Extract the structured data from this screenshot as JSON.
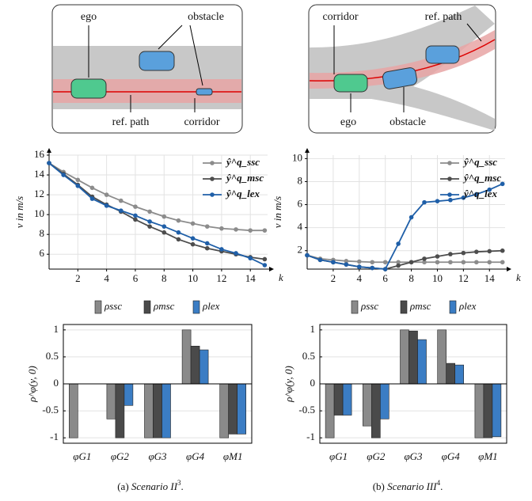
{
  "scenes": {
    "left": {
      "ego": "ego",
      "obstacle": "obstacle",
      "ref_path": "ref. path",
      "corridor": "corridor"
    },
    "right": {
      "corridor": "corridor",
      "ref_path": "ref. path",
      "ego": "ego",
      "obstacle": "obstacle"
    }
  },
  "captions": {
    "left": {
      "label": "(a)",
      "text": "Scenario II",
      "sup": "3",
      "end": "."
    },
    "right": {
      "label": "(b)",
      "text": "Scenario III",
      "sup": "4",
      "end": "."
    }
  },
  "chart_data": [
    {
      "type": "line",
      "xlabel": "k",
      "ylabel": "v in m/s",
      "x": [
        0,
        1,
        2,
        3,
        4,
        5,
        6,
        7,
        8,
        9,
        10,
        11,
        12,
        13,
        14,
        15
      ],
      "xlim": [
        0,
        15.2
      ],
      "xticks": [
        2,
        4,
        6,
        8,
        10,
        12,
        14
      ],
      "ylim": [
        4.5,
        16
      ],
      "yticks": [
        6,
        8,
        10,
        12,
        14,
        16
      ],
      "grid": true,
      "legend": "top-right",
      "series": [
        {
          "name": "ŷ^q_ssc",
          "color": "#8c8c8c",
          "values": [
            15.2,
            14.3,
            13.5,
            12.7,
            12.0,
            11.4,
            10.8,
            10.3,
            9.8,
            9.4,
            9.1,
            8.8,
            8.6,
            8.5,
            8.4,
            8.4
          ]
        },
        {
          "name": "ŷ^q_msc",
          "color": "#4d4d4d",
          "values": [
            15.2,
            14.1,
            13.0,
            11.8,
            11.0,
            10.3,
            9.5,
            8.8,
            8.2,
            7.5,
            7.0,
            6.6,
            6.3,
            6.0,
            5.7,
            5.5
          ]
        },
        {
          "name": "ŷ^q_lex",
          "color": "#1f5fa8",
          "values": [
            15.2,
            14.0,
            12.9,
            11.6,
            10.9,
            10.4,
            9.9,
            9.3,
            8.8,
            8.2,
            7.6,
            7.1,
            6.5,
            6.1,
            5.6,
            4.9
          ]
        }
      ]
    },
    {
      "type": "line",
      "xlabel": "k",
      "ylabel": "v in m/s",
      "x": [
        0,
        1,
        2,
        3,
        4,
        5,
        6,
        7,
        8,
        9,
        10,
        11,
        12,
        13,
        14,
        15
      ],
      "xlim": [
        0,
        15.2
      ],
      "xticks": [
        2,
        4,
        6,
        8,
        10,
        12,
        14
      ],
      "ylim": [
        0.4,
        10.3
      ],
      "yticks": [
        2,
        4,
        6,
        8,
        10
      ],
      "grid": true,
      "legend": "top-right",
      "series": [
        {
          "name": "ŷ^q_ssc",
          "color": "#8c8c8c",
          "values": [
            1.6,
            1.3,
            1.2,
            1.1,
            1.05,
            1.0,
            1.0,
            1.0,
            1.0,
            1.0,
            1.0,
            1.0,
            1.0,
            1.0,
            1.0,
            1.0
          ]
        },
        {
          "name": "ŷ^q_msc",
          "color": "#4d4d4d",
          "values": [
            1.6,
            1.2,
            1.0,
            0.8,
            0.6,
            0.5,
            0.4,
            0.7,
            1.0,
            1.3,
            1.5,
            1.7,
            1.8,
            1.9,
            1.95,
            2.0
          ]
        },
        {
          "name": "ŷ^q_lex",
          "color": "#1f5fa8",
          "values": [
            1.6,
            1.2,
            1.0,
            0.8,
            0.6,
            0.5,
            0.4,
            2.6,
            4.9,
            6.2,
            6.3,
            6.4,
            6.6,
            6.9,
            7.3,
            7.8
          ]
        }
      ]
    },
    {
      "type": "bar",
      "ylabel": "ρ^φ(y, 0)",
      "categories": [
        "φG1",
        "φG2",
        "φG3",
        "φG4",
        "φM1"
      ],
      "ylim": [
        -1.1,
        1.1
      ],
      "yticks": [
        -1,
        -0.5,
        0,
        0.5,
        1
      ],
      "grid": true,
      "legend": "top",
      "series": [
        {
          "name": "ρssc",
          "color": "#8a8a8a",
          "values": [
            -1,
            -0.65,
            -1,
            1,
            -1
          ]
        },
        {
          "name": "ρmsc",
          "color": "#4a4a4a",
          "values": [
            0,
            -1,
            -1,
            0.7,
            -0.93
          ]
        },
        {
          "name": "ρlex",
          "color": "#3b7dc4",
          "values": [
            0,
            -0.4,
            -1,
            0.63,
            -0.93
          ]
        }
      ]
    },
    {
      "type": "bar",
      "ylabel": "ρ^φ(y, 0)",
      "categories": [
        "φG1",
        "φG2",
        "φG3",
        "φG4",
        "φM1"
      ],
      "ylim": [
        -1.1,
        1.1
      ],
      "yticks": [
        -1,
        -0.5,
        0,
        0.5,
        1
      ],
      "grid": true,
      "legend": "top",
      "series": [
        {
          "name": "ρssc",
          "color": "#8a8a8a",
          "values": [
            -1,
            -0.78,
            1,
            1,
            -1
          ]
        },
        {
          "name": "ρmsc",
          "color": "#4a4a4a",
          "values": [
            -0.58,
            -1,
            0.98,
            0.38,
            -1
          ]
        },
        {
          "name": "ρlex",
          "color": "#3b7dc4",
          "values": [
            -0.58,
            -0.65,
            0.82,
            0.35,
            -0.98
          ]
        }
      ]
    }
  ]
}
